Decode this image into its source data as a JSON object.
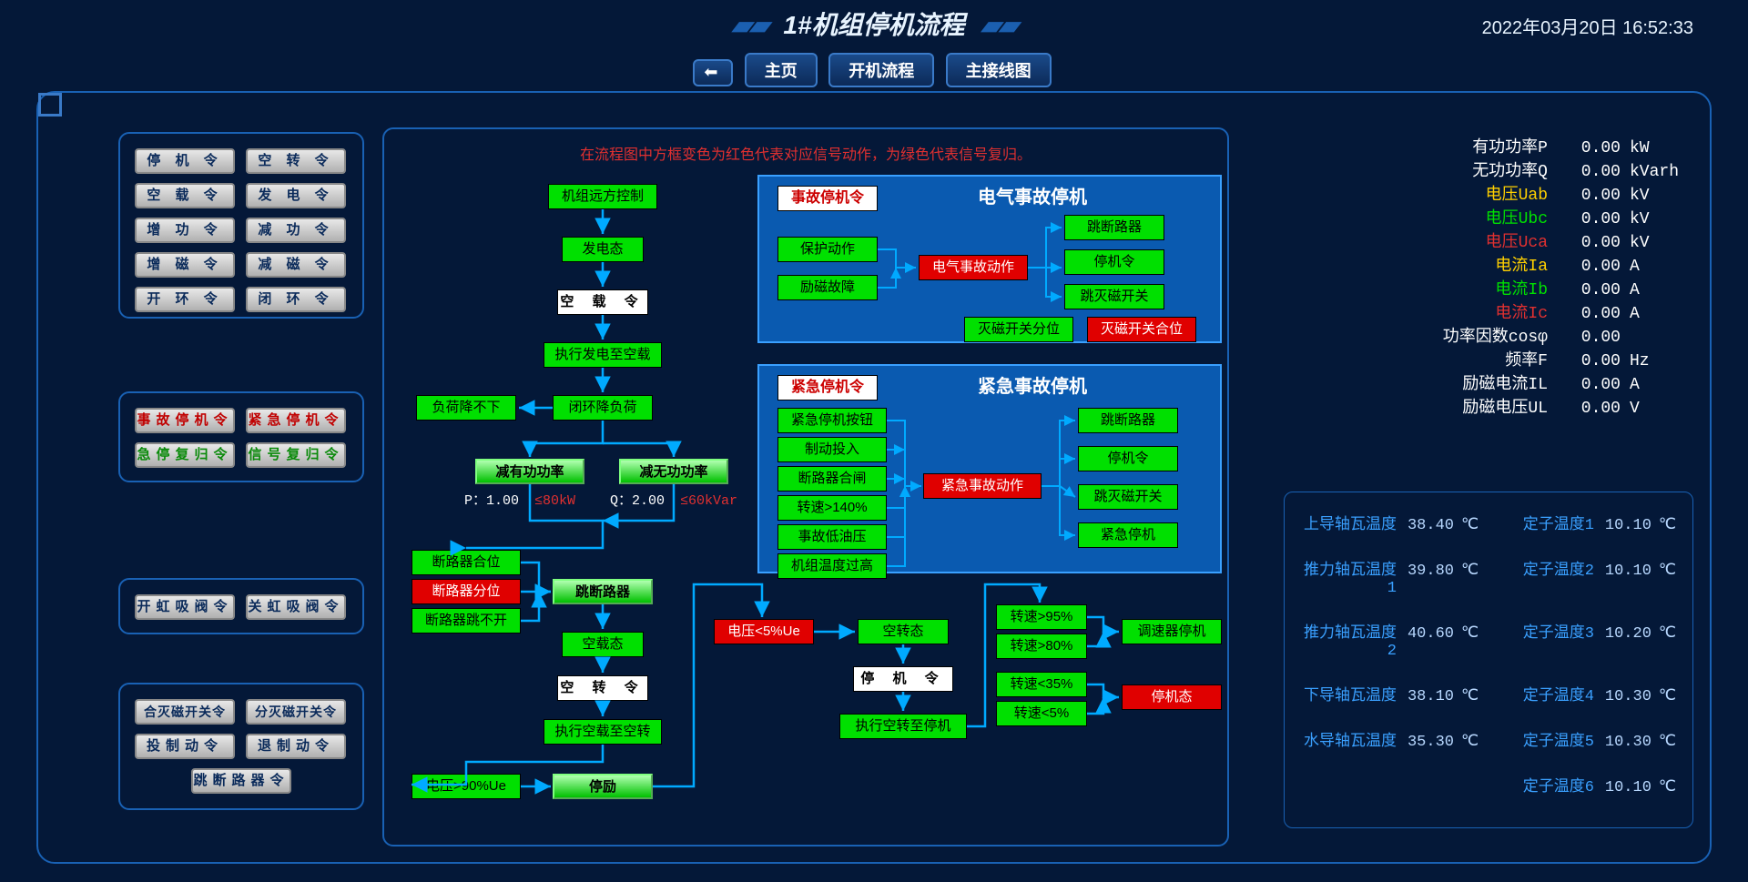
{
  "header": {
    "title": "1#机组停机流程",
    "datetime": "2022年03月20日 16:52:33"
  },
  "nav": {
    "home": "主页",
    "start": "开机流程",
    "wiring": "主接线图"
  },
  "legend": "在流程图中方框变色为红色代表对应信号动作，为绿色代表信号复归。",
  "cmdGroup1": [
    {
      "t": "停 机 令"
    },
    {
      "t": "空 转 令"
    },
    {
      "t": "空 载 令"
    },
    {
      "t": "发 电 令"
    },
    {
      "t": "增 功 令"
    },
    {
      "t": "减 功 令"
    },
    {
      "t": "增 磁 令"
    },
    {
      "t": "减 磁 令"
    },
    {
      "t": "开 环 令"
    },
    {
      "t": "闭 环 令"
    }
  ],
  "cmdGroup2": [
    {
      "t": "事故停机令",
      "c": "red"
    },
    {
      "t": "紧急停机令",
      "c": "red"
    },
    {
      "t": "急停复归令",
      "c": "green"
    },
    {
      "t": "信号复归令",
      "c": "green"
    }
  ],
  "cmdGroup3": [
    {
      "t": "开虹吸阀令"
    },
    {
      "t": "关虹吸阀令"
    }
  ],
  "cmdGroup4": [
    {
      "t": "合灭磁开关令"
    },
    {
      "t": "分灭磁开关令"
    },
    {
      "t": "投制动令"
    },
    {
      "t": "退制动令"
    },
    {
      "t": "跳断路器令",
      "span": 2
    }
  ],
  "flow": {
    "n1": "机组远方控制",
    "n2": "发电态",
    "n3": "空 载 令",
    "n4": "执行发电至空载",
    "n5": "闭环降负荷",
    "n5l": "负荷降不下",
    "n6a": "减有功功率",
    "n6b": "减无功功率",
    "p": "P：",
    "pv": "1.00",
    "pl": "≤80kW",
    "q": "Q：",
    "qv": "2.00",
    "ql": "≤60kVar",
    "n7a": "断路器合位",
    "n7b": "断路器分位",
    "n7c": "断路器跳不开",
    "n8": "跳断路器",
    "n9": "空载态",
    "n10": "空 转 令",
    "n11": "执行空载至空转",
    "n12": "电压>90%Ue",
    "n13": "停励",
    "r1": "电压<5%Ue",
    "r2": "空转态",
    "r3": "停 机 令",
    "r4": "执行空转至停机",
    "s1": "转速>95%",
    "s2": "转速>80%",
    "s3": "转速<35%",
    "s4": "转速<5%",
    "s5": "调速器停机",
    "s6": "停机态"
  },
  "elec": {
    "title": "电气事故停机",
    "cmd": "事故停机令",
    "a": "保护动作",
    "b": "励磁故障",
    "c": "电气事故动作",
    "o1": "跳断路器",
    "o2": "停机令",
    "o3": "跳灭磁开关",
    "d1": "灭磁开关分位",
    "d2": "灭磁开关合位"
  },
  "emerg": {
    "title": "紧急事故停机",
    "cmd": "紧急停机令",
    "i1": "紧急停机按钮",
    "i2": "制动投入",
    "i3": "断路器合闸",
    "i4": "转速>140%",
    "i5": "事故低油压",
    "i6": "机组温度过高",
    "c": "紧急事故动作",
    "o1": "跳断路器",
    "o2": "停机令",
    "o3": "跳灭磁开关",
    "o4": "紧急停机"
  },
  "metrics": [
    {
      "l": "有功功率P",
      "v": "0.00",
      "u": "kW",
      "c": "wtc"
    },
    {
      "l": "无功功率Q",
      "v": "0.00",
      "u": "kVarh",
      "c": "wtc"
    },
    {
      "l": "电压Uab",
      "v": "0.00",
      "u": "kV",
      "c": "yel"
    },
    {
      "l": "电压Ubc",
      "v": "0.00",
      "u": "kV",
      "c": "grn"
    },
    {
      "l": "电压Uca",
      "v": "0.00",
      "u": "kV",
      "c": "rdc"
    },
    {
      "l": "电流Ia",
      "v": "0.00",
      "u": "A",
      "c": "yel"
    },
    {
      "l": "电流Ib",
      "v": "0.00",
      "u": "A",
      "c": "grn"
    },
    {
      "l": "电流Ic",
      "v": "0.00",
      "u": "A",
      "c": "rdc"
    },
    {
      "l": "功率因数cosφ",
      "v": "0.00",
      "u": "",
      "c": "wtc"
    },
    {
      "l": "频率F",
      "v": "0.00",
      "u": "Hz",
      "c": "wtc"
    },
    {
      "l": "励磁电流IL",
      "v": "0.00",
      "u": "A",
      "c": "wtc"
    },
    {
      "l": "励磁电压UL",
      "v": "0.00",
      "u": "V",
      "c": "wtc"
    }
  ],
  "temps": {
    "left": [
      {
        "l": "上导轴瓦温度",
        "v": "38.40"
      },
      {
        "l": "推力轴瓦温度1",
        "v": "39.80"
      },
      {
        "l": "推力轴瓦温度2",
        "v": "40.60"
      },
      {
        "l": "下导轴瓦温度",
        "v": "38.10"
      },
      {
        "l": "水导轴瓦温度",
        "v": "35.30"
      }
    ],
    "right": [
      {
        "l": "定子温度1",
        "v": "10.10"
      },
      {
        "l": "定子温度2",
        "v": "10.10"
      },
      {
        "l": "定子温度3",
        "v": "10.20"
      },
      {
        "l": "定子温度4",
        "v": "10.30"
      },
      {
        "l": "定子温度5",
        "v": "10.30"
      },
      {
        "l": "定子温度6",
        "v": "10.10"
      }
    ]
  },
  "colors": {
    "bg": "#041838",
    "border": "#1961b4",
    "accent": "#3a7ac8",
    "green": "#00e000",
    "red": "#e00000",
    "subBg": "#0a5ab0"
  }
}
